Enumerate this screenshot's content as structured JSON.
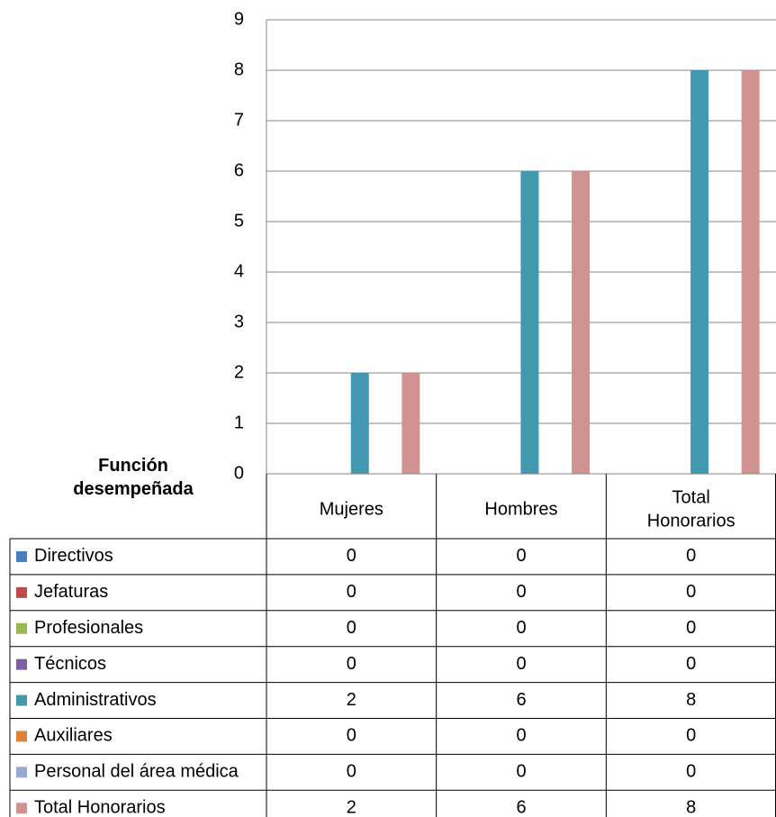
{
  "chart_data": {
    "type": "bar",
    "header_title_lines": [
      "Función",
      "desempeñada"
    ],
    "categories": [
      {
        "lines": [
          "Mujeres"
        ]
      },
      {
        "lines": [
          "Hombres"
        ]
      },
      {
        "lines": [
          "Total",
          "Honorarios"
        ]
      }
    ],
    "ylim": [
      0,
      9
    ],
    "yticks": [
      0,
      1,
      2,
      3,
      4,
      5,
      6,
      7,
      8,
      9
    ],
    "grid": true,
    "legend": "table",
    "series": [
      {
        "name": "Directivos",
        "color": "#4a7ebb",
        "values": [
          0,
          0,
          0
        ]
      },
      {
        "name": "Jefaturas",
        "color": "#be4b48",
        "values": [
          0,
          0,
          0
        ]
      },
      {
        "name": "Profesionales",
        "color": "#98b954",
        "values": [
          0,
          0,
          0
        ]
      },
      {
        "name": "Técnicos",
        "color": "#7d60a0",
        "values": [
          0,
          0,
          0
        ]
      },
      {
        "name": "Administrativos",
        "color": "#4198af",
        "values": [
          2,
          6,
          8
        ]
      },
      {
        "name": "Auxiliares",
        "color": "#db843d",
        "values": [
          0,
          0,
          0
        ]
      },
      {
        "name": "Personal del área médica",
        "color": "#93a9cf",
        "values": [
          0,
          0,
          0
        ]
      },
      {
        "name": "Total Honorarios",
        "color": "#d19392",
        "values": [
          2,
          6,
          8
        ]
      }
    ]
  }
}
